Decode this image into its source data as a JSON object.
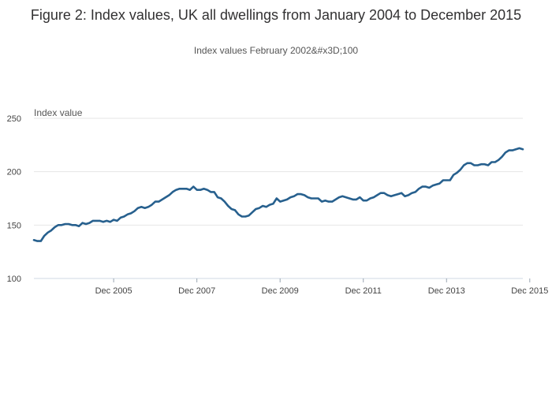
{
  "chart_data": {
    "type": "line",
    "title": "Figure 2: Index values, UK all dwellings from January 2004 to December 2015",
    "subtitle": "Index values February 2002&#x3D;100",
    "ylabel": "Index value",
    "xlabel": "",
    "ylim": [
      100,
      250
    ],
    "yticks": [
      100,
      150,
      200,
      250
    ],
    "xticks": [
      "Dec 2005",
      "Dec 2007",
      "Dec 2009",
      "Dec 2011",
      "Dec 2013",
      "Dec 2015"
    ],
    "grid": true,
    "legend": "none",
    "color": "#27608e",
    "x_start": "Jan 2004",
    "x_end": "Dec 2015",
    "series": [
      {
        "values": [
          136,
          135,
          135,
          140,
          143,
          145,
          148,
          150,
          150,
          151,
          151,
          150,
          150,
          149,
          152,
          151,
          152,
          154,
          154,
          154,
          153,
          154,
          153,
          155,
          154,
          157,
          158,
          160,
          161,
          163,
          166,
          167,
          166,
          167,
          169,
          172,
          172,
          174,
          176,
          178,
          181,
          183,
          184,
          184,
          184,
          183,
          186,
          183,
          183,
          184,
          183,
          181,
          181,
          176,
          175,
          172,
          168,
          165,
          164,
          160,
          158,
          158,
          159,
          162,
          165,
          166,
          168,
          167,
          169,
          170,
          175,
          172,
          173,
          174,
          176,
          177,
          179,
          179,
          178,
          176,
          175,
          175,
          175,
          172,
          173,
          172,
          172,
          174,
          176,
          177,
          176,
          175,
          174,
          174,
          176,
          173,
          173,
          175,
          176,
          178,
          180,
          180,
          178,
          177,
          178,
          179,
          180,
          177,
          178,
          180,
          181,
          184,
          186,
          186,
          185,
          187,
          188,
          189,
          192,
          192,
          192,
          197,
          199,
          202,
          206,
          208,
          208,
          206,
          206,
          207,
          207,
          206,
          209,
          209,
          211,
          214,
          218,
          220,
          220,
          221,
          222,
          221
        ]
      }
    ]
  }
}
